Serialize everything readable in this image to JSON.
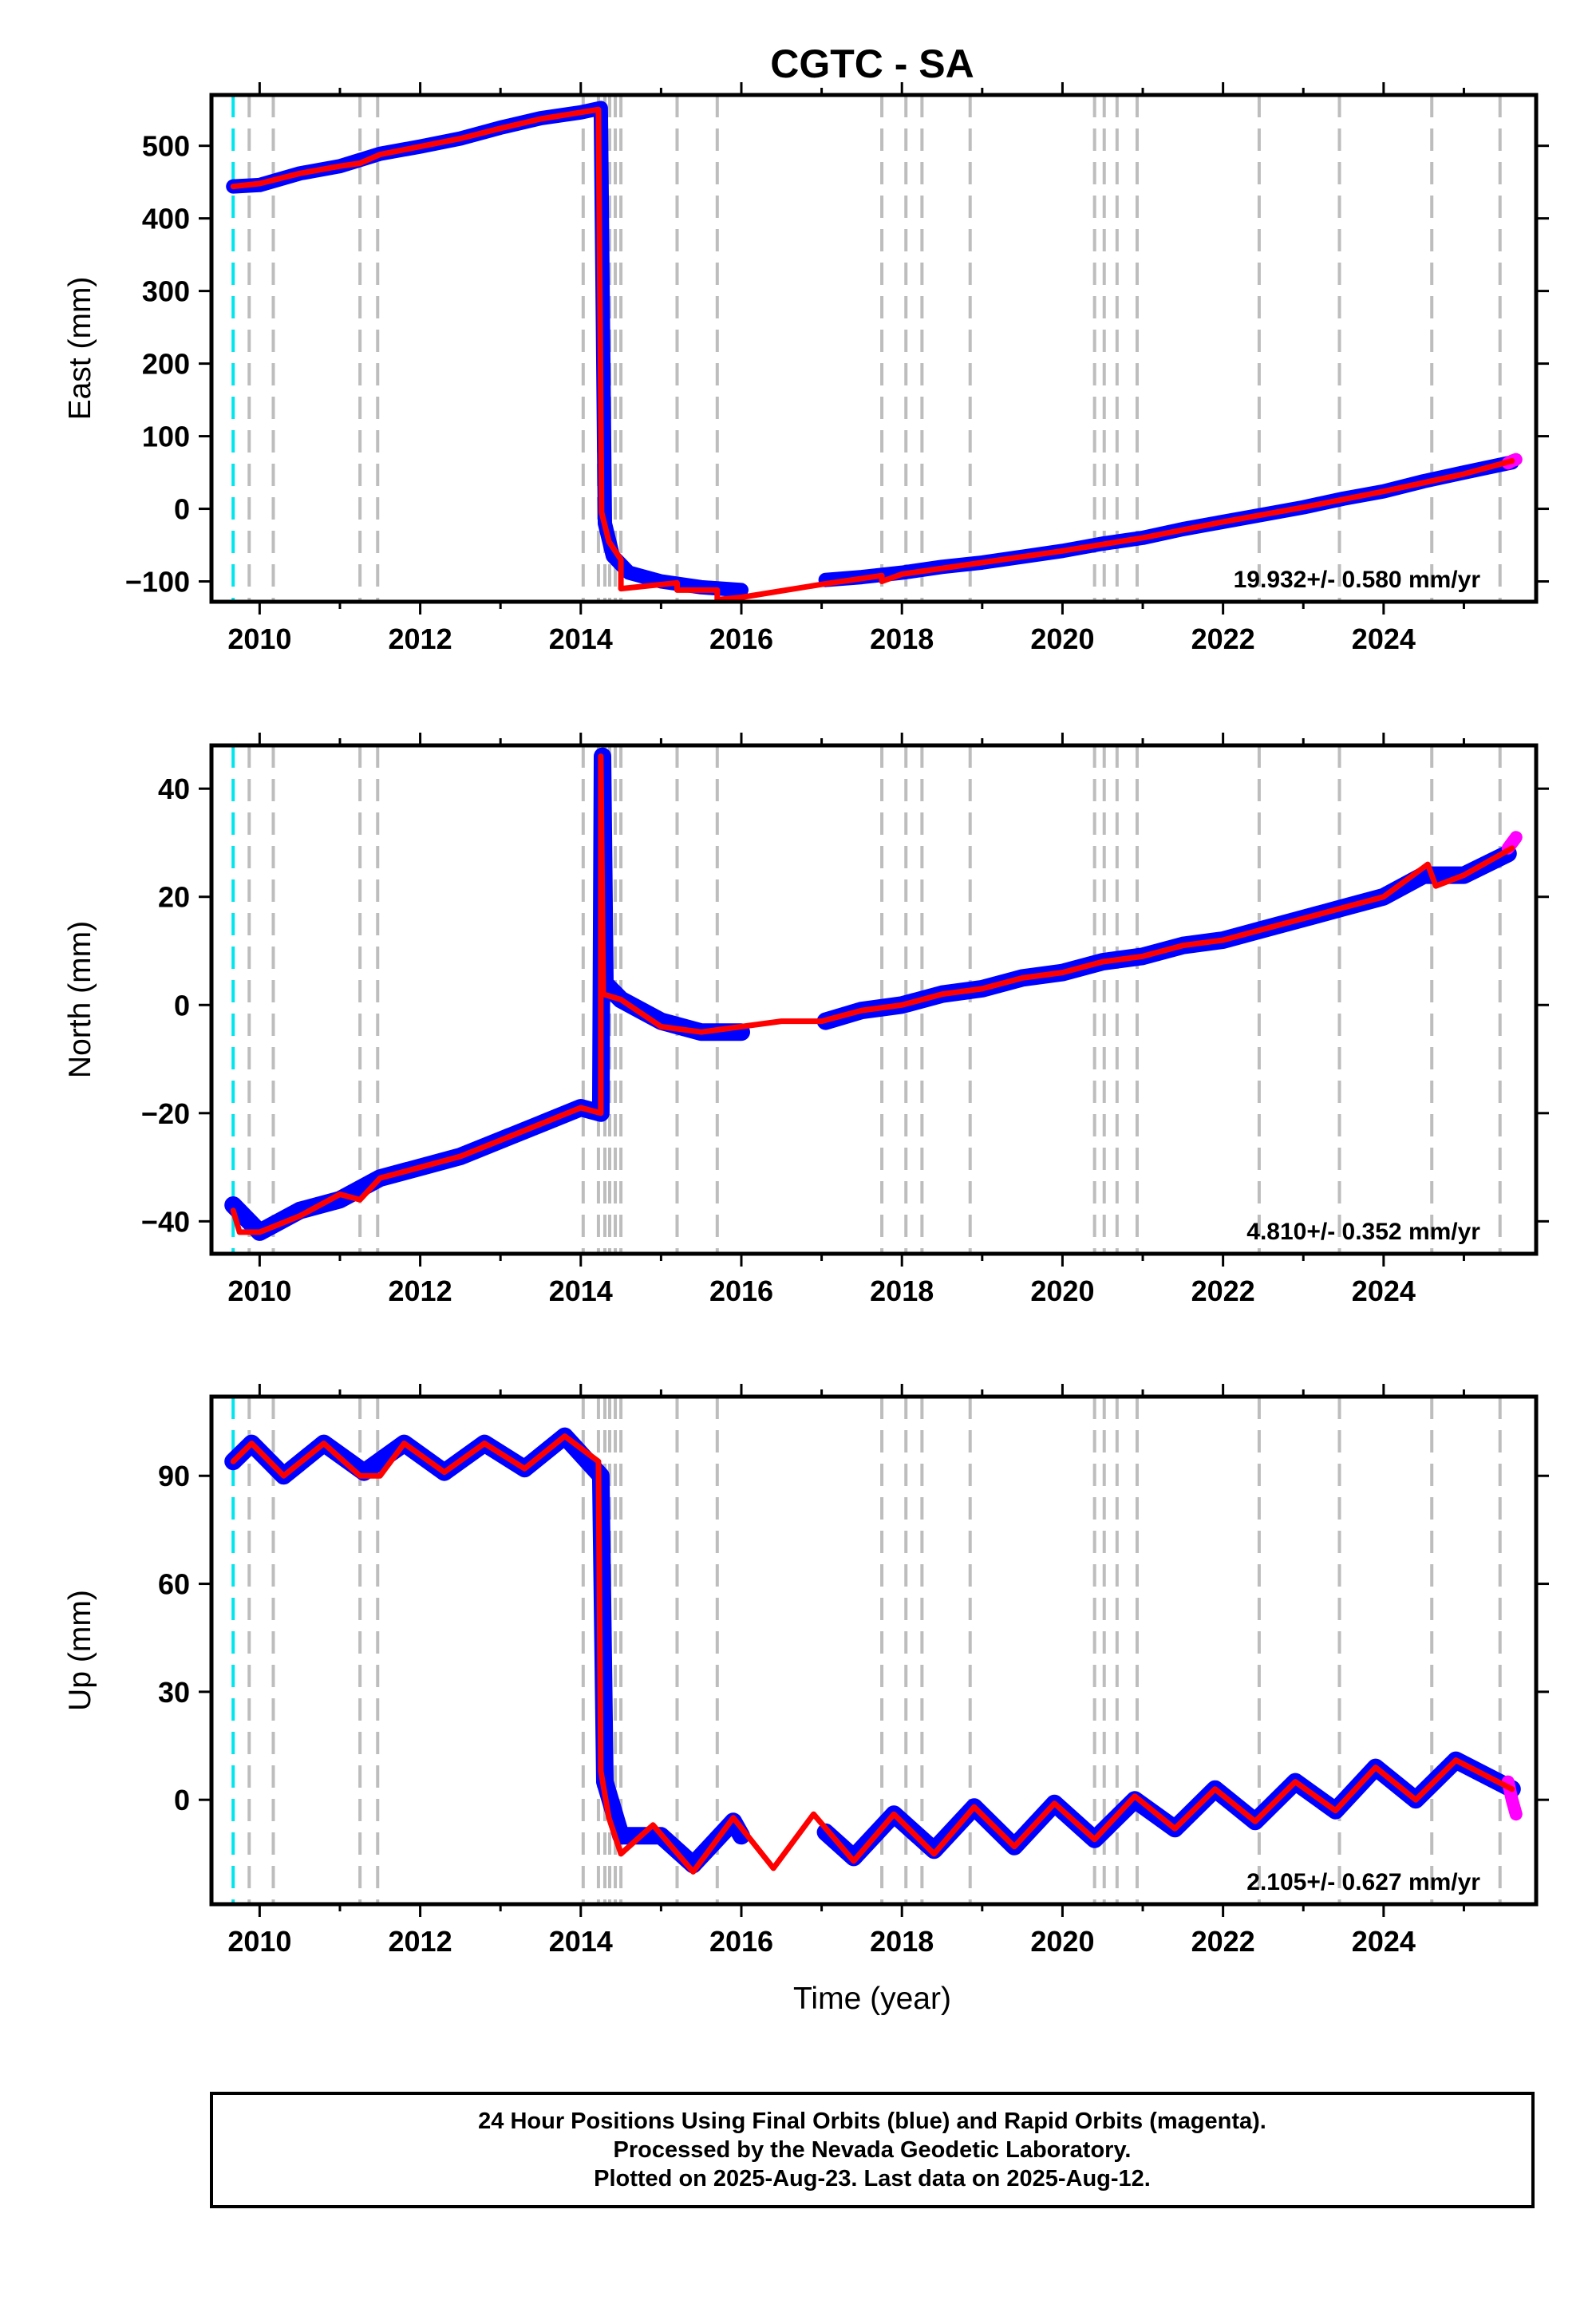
{
  "chart_data": [
    {
      "type": "scatter",
      "title": "CGTC - SA",
      "ylabel": "East (mm)",
      "xlabel": "",
      "xlim": [
        2009.4,
        2025.9
      ],
      "ylim": [
        -128,
        570
      ],
      "x_ticks": [
        "2010",
        "2012",
        "2014",
        "2016",
        "2018",
        "2020",
        "2022",
        "2024"
      ],
      "y_ticks": [
        "500",
        "400",
        "300",
        "200",
        "100",
        "0",
        "−100"
      ],
      "y_tick_values": [
        500,
        400,
        300,
        200,
        100,
        0,
        -100
      ],
      "rate_label": "19.932+/- 0.580 mm/yr",
      "grid": false,
      "start_line": 2009.67,
      "event_lines": [
        2009.87,
        2010.17,
        2011.25,
        2011.47,
        2014.03,
        2014.22,
        2014.3,
        2014.36,
        2014.43,
        2014.5,
        2015.2,
        2015.7,
        2017.75,
        2018.05,
        2018.25,
        2018.85,
        2020.4,
        2020.52,
        2020.68,
        2020.93,
        2022.45,
        2023.45,
        2024.6,
        2025.45
      ],
      "series": [
        {
          "values": [
            [
              2009.67,
              444
            ],
            [
              2010.0,
              446
            ],
            [
              2010.5,
              462
            ],
            [
              2011.0,
              472
            ],
            [
              2011.5,
              489
            ],
            [
              2012.0,
              499
            ],
            [
              2012.5,
              510
            ],
            [
              2013.0,
              525
            ],
            [
              2013.5,
              538
            ],
            [
              2014.0,
              546
            ],
            [
              2014.25,
              552
            ],
            [
              2014.3,
              -20
            ],
            [
              2014.4,
              -65
            ],
            [
              2014.6,
              -88
            ],
            [
              2015.0,
              -100
            ],
            [
              2015.5,
              -108
            ],
            [
              2016.0,
              -112
            ]
          ]
        },
        {
          "values": [
            [
              2017.05,
              -98
            ],
            [
              2017.5,
              -94
            ],
            [
              2018.0,
              -88
            ],
            [
              2018.5,
              -80
            ],
            [
              2019.0,
              -74
            ],
            [
              2019.5,
              -66
            ],
            [
              2020.0,
              -58
            ],
            [
              2020.5,
              -48
            ],
            [
              2021.0,
              -40
            ],
            [
              2021.5,
              -28
            ],
            [
              2022.0,
              -18
            ],
            [
              2022.5,
              -8
            ],
            [
              2023.0,
              2
            ],
            [
              2023.5,
              14
            ],
            [
              2024.0,
              24
            ],
            [
              2024.5,
              38
            ],
            [
              2025.0,
              50
            ],
            [
              2025.6,
              64
            ]
          ]
        },
        {
          "values": [
            [
              2025.55,
              63
            ],
            [
              2025.6,
              66
            ],
            [
              2025.65,
              68
            ]
          ]
        },
        {
          "values": [
            [
              2009.67,
              444
            ],
            [
              2010.0,
              448
            ],
            [
              2010.5,
              462
            ],
            [
              2011.0,
              472
            ],
            [
              2011.25,
              476
            ],
            [
              2011.5,
              488
            ],
            [
              2012.0,
              499
            ],
            [
              2012.5,
              510
            ],
            [
              2013.0,
              524
            ],
            [
              2013.5,
              537
            ],
            [
              2014.0,
              546
            ],
            [
              2014.22,
              550
            ],
            [
              2014.26,
              -5
            ],
            [
              2014.35,
              -45
            ],
            [
              2014.5,
              -70
            ],
            [
              2014.5,
              -110
            ],
            [
              2015.2,
              -102
            ],
            [
              2015.2,
              -112
            ],
            [
              2015.7,
              -112
            ],
            [
              2015.7,
              -125
            ],
            [
              2016.0,
              -122
            ],
            [
              2017.0,
              -104
            ],
            [
              2017.75,
              -92
            ],
            [
              2017.75,
              -100
            ],
            [
              2018.0,
              -90
            ],
            [
              2019.0,
              -74
            ],
            [
              2020.0,
              -58
            ],
            [
              2021.0,
              -40
            ],
            [
              2022.0,
              -18
            ],
            [
              2023.0,
              2
            ],
            [
              2024.0,
              24
            ],
            [
              2025.0,
              48
            ],
            [
              2025.6,
              66
            ]
          ]
        }
      ]
    },
    {
      "type": "scatter",
      "title": "",
      "ylabel": "North (mm)",
      "xlabel": "",
      "xlim": [
        2009.4,
        2025.9
      ],
      "ylim": [
        -46,
        48
      ],
      "x_ticks": [
        "2010",
        "2012",
        "2014",
        "2016",
        "2018",
        "2020",
        "2022",
        "2024"
      ],
      "y_ticks": [
        "40",
        "20",
        "0",
        "−20",
        "−40"
      ],
      "y_tick_values": [
        40,
        20,
        0,
        -20,
        -40
      ],
      "rate_label": "4.810+/- 0.352 mm/yr",
      "grid": false,
      "start_line": 2009.67,
      "event_lines": [
        2009.87,
        2010.17,
        2011.25,
        2011.47,
        2014.03,
        2014.22,
        2014.3,
        2014.36,
        2014.43,
        2014.5,
        2015.2,
        2015.7,
        2017.75,
        2018.05,
        2018.25,
        2018.85,
        2020.4,
        2020.52,
        2020.68,
        2020.93,
        2022.45,
        2023.45,
        2024.6,
        2025.45
      ],
      "series": [
        {
          "values": [
            [
              2009.67,
              -37
            ],
            [
              2010.0,
              -42
            ],
            [
              2010.5,
              -38
            ],
            [
              2011.0,
              -36
            ],
            [
              2011.5,
              -32
            ],
            [
              2012.0,
              -30
            ],
            [
              2012.5,
              -28
            ],
            [
              2013.0,
              -25
            ],
            [
              2013.5,
              -22
            ],
            [
              2014.0,
              -19
            ],
            [
              2014.25,
              -20
            ],
            [
              2014.27,
              46
            ],
            [
              2014.3,
              4
            ],
            [
              2014.5,
              1
            ],
            [
              2015.0,
              -3
            ],
            [
              2015.5,
              -5
            ],
            [
              2016.0,
              -5
            ]
          ]
        },
        {
          "values": [
            [
              2017.05,
              -3
            ],
            [
              2017.5,
              -1
            ],
            [
              2018.0,
              0
            ],
            [
              2018.5,
              2
            ],
            [
              2019.0,
              3
            ],
            [
              2019.5,
              5
            ],
            [
              2020.0,
              6
            ],
            [
              2020.5,
              8
            ],
            [
              2021.0,
              9
            ],
            [
              2021.5,
              11
            ],
            [
              2022.0,
              12
            ],
            [
              2022.5,
              14
            ],
            [
              2023.0,
              16
            ],
            [
              2023.5,
              18
            ],
            [
              2024.0,
              20
            ],
            [
              2024.5,
              24
            ],
            [
              2025.0,
              24
            ],
            [
              2025.55,
              28
            ]
          ]
        },
        {
          "values": [
            [
              2025.55,
              29
            ],
            [
              2025.6,
              30
            ],
            [
              2025.65,
              31
            ]
          ]
        },
        {
          "values": [
            [
              2009.67,
              -38
            ],
            [
              2009.75,
              -42
            ],
            [
              2010.0,
              -42
            ],
            [
              2010.5,
              -39
            ],
            [
              2011.0,
              -35
            ],
            [
              2011.25,
              -36
            ],
            [
              2011.5,
              -32
            ],
            [
              2012.0,
              -30
            ],
            [
              2012.5,
              -28
            ],
            [
              2013.0,
              -25
            ],
            [
              2013.5,
              -22
            ],
            [
              2014.0,
              -19
            ],
            [
              2014.25,
              -20
            ],
            [
              2014.25,
              46
            ],
            [
              2014.28,
              2
            ],
            [
              2014.5,
              1
            ],
            [
              2015.0,
              -4
            ],
            [
              2015.5,
              -5
            ],
            [
              2016.0,
              -4
            ],
            [
              2016.5,
              -3
            ],
            [
              2017.0,
              -3
            ],
            [
              2017.5,
              -1
            ],
            [
              2018.0,
              0
            ],
            [
              2018.5,
              2
            ],
            [
              2019.0,
              3
            ],
            [
              2019.5,
              5
            ],
            [
              2020.0,
              6
            ],
            [
              2020.5,
              8
            ],
            [
              2021.0,
              9
            ],
            [
              2021.5,
              11
            ],
            [
              2022.0,
              12
            ],
            [
              2022.5,
              14
            ],
            [
              2023.0,
              16
            ],
            [
              2023.5,
              18
            ],
            [
              2024.0,
              20
            ],
            [
              2024.55,
              26
            ],
            [
              2024.65,
              22
            ],
            [
              2025.0,
              24
            ],
            [
              2025.6,
              29
            ]
          ]
        }
      ]
    },
    {
      "type": "scatter",
      "title": "",
      "ylabel": "Up (mm)",
      "xlabel": "Time (year)",
      "xlim": [
        2009.4,
        2025.9
      ],
      "ylim": [
        -29,
        112
      ],
      "x_ticks": [
        "2010",
        "2012",
        "2014",
        "2016",
        "2018",
        "2020",
        "2022",
        "2024"
      ],
      "y_ticks": [
        "90",
        "60",
        "30",
        "0"
      ],
      "y_tick_values": [
        90,
        60,
        30,
        0
      ],
      "rate_label": "2.105+/- 0.627 mm/yr",
      "grid": false,
      "start_line": 2009.67,
      "event_lines": [
        2009.87,
        2010.17,
        2011.25,
        2011.47,
        2014.03,
        2014.22,
        2014.3,
        2014.36,
        2014.43,
        2014.5,
        2015.2,
        2015.7,
        2017.75,
        2018.05,
        2018.25,
        2018.85,
        2020.4,
        2020.52,
        2020.68,
        2020.93,
        2022.45,
        2023.45,
        2024.6,
        2025.45
      ],
      "series": [
        {
          "values": [
            [
              2009.67,
              94
            ],
            [
              2009.9,
              99
            ],
            [
              2010.3,
              90
            ],
            [
              2010.8,
              99
            ],
            [
              2011.3,
              91
            ],
            [
              2011.8,
              99
            ],
            [
              2012.3,
              91
            ],
            [
              2012.8,
              99
            ],
            [
              2013.3,
              92
            ],
            [
              2013.8,
              101
            ],
            [
              2014.25,
              90
            ],
            [
              2014.3,
              5
            ],
            [
              2014.5,
              -10
            ],
            [
              2015.0,
              -10
            ],
            [
              2015.4,
              -18
            ],
            [
              2015.9,
              -6
            ],
            [
              2016.0,
              -10
            ]
          ]
        },
        {
          "values": [
            [
              2017.05,
              -9
            ],
            [
              2017.4,
              -16
            ],
            [
              2017.9,
              -4
            ],
            [
              2018.4,
              -14
            ],
            [
              2018.9,
              -2
            ],
            [
              2019.4,
              -13
            ],
            [
              2019.9,
              -1
            ],
            [
              2020.4,
              -11
            ],
            [
              2020.9,
              0
            ],
            [
              2021.4,
              -8
            ],
            [
              2021.9,
              3
            ],
            [
              2022.4,
              -6
            ],
            [
              2022.9,
              5
            ],
            [
              2023.4,
              -3
            ],
            [
              2023.9,
              9
            ],
            [
              2024.4,
              0
            ],
            [
              2024.9,
              11
            ],
            [
              2025.6,
              3
            ]
          ]
        },
        {
          "values": [
            [
              2025.55,
              5
            ],
            [
              2025.6,
              0
            ],
            [
              2025.65,
              -4
            ]
          ]
        },
        {
          "values": [
            [
              2009.67,
              94
            ],
            [
              2009.9,
              99
            ],
            [
              2010.3,
              90
            ],
            [
              2010.8,
              99
            ],
            [
              2011.25,
              90
            ],
            [
              2011.5,
              90
            ],
            [
              2011.8,
              99
            ],
            [
              2012.3,
              91
            ],
            [
              2012.8,
              99
            ],
            [
              2013.3,
              92
            ],
            [
              2013.8,
              101
            ],
            [
              2014.22,
              94
            ],
            [
              2014.25,
              8
            ],
            [
              2014.35,
              -5
            ],
            [
              2014.5,
              -15
            ],
            [
              2014.9,
              -7
            ],
            [
              2015.4,
              -20
            ],
            [
              2015.9,
              -5
            ],
            [
              2016.4,
              -19
            ],
            [
              2016.9,
              -4
            ],
            [
              2017.4,
              -17
            ],
            [
              2017.9,
              -4
            ],
            [
              2018.4,
              -15
            ],
            [
              2018.9,
              -2
            ],
            [
              2019.4,
              -13
            ],
            [
              2019.9,
              -1
            ],
            [
              2020.4,
              -11
            ],
            [
              2020.9,
              1
            ],
            [
              2021.4,
              -8
            ],
            [
              2021.9,
              3
            ],
            [
              2022.4,
              -6
            ],
            [
              2022.9,
              5
            ],
            [
              2023.4,
              -3
            ],
            [
              2023.9,
              9
            ],
            [
              2024.4,
              0
            ],
            [
              2024.9,
              11
            ],
            [
              2025.6,
              3
            ]
          ]
        }
      ]
    }
  ],
  "colors": {
    "final_orbits": "#0000ff",
    "rapid_orbits": "#ff00ff",
    "model_fit": "#ff0000",
    "start_line": "#00e5ee",
    "event_lines": "#bdbdbd"
  },
  "footer": {
    "line1": "24 Hour Positions Using Final Orbits (blue) and Rapid Orbits (magenta).",
    "line2": "Processed by the Nevada Geodetic Laboratory.",
    "line3": "Plotted on 2025-Aug-23. Last data on 2025-Aug-12."
  }
}
